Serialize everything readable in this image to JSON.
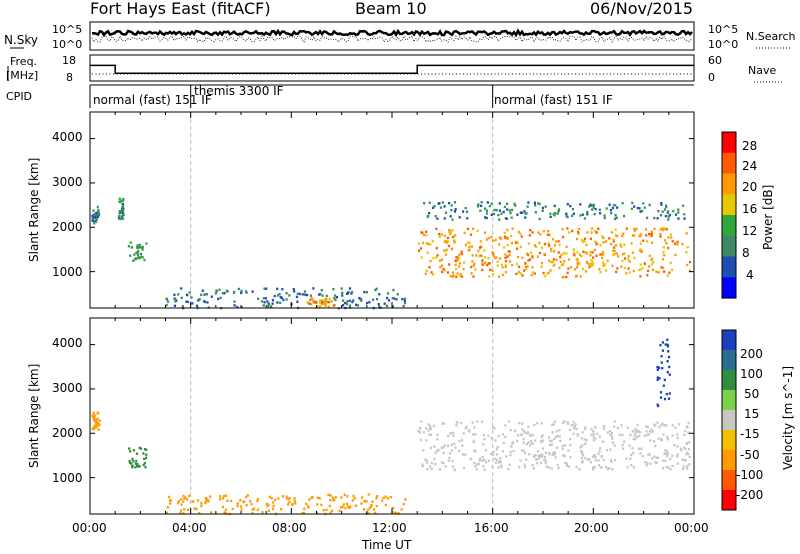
{
  "header": {
    "radar": "Fort Hays East (fitACF)",
    "beam": "Beam 10",
    "date": "06/Nov/2015"
  },
  "noise_panel": {
    "left_label": "N.Sky",
    "left_ticks": [
      "10^5",
      "10^0"
    ],
    "right_label": "N.Search",
    "right_ticks": [
      "10^5",
      "10^0"
    ]
  },
  "freq_panel": {
    "left_label_1": "Freq.",
    "left_label_2": "[MHz]",
    "left_ticks": [
      "18",
      "8"
    ],
    "right_label": "Nave",
    "right_ticks": [
      "60",
      "0"
    ]
  },
  "cpid_panel": {
    "label": "CPID",
    "segments": [
      {
        "label": "normal (fast) 151 IF",
        "start_h": 0,
        "end_h": 4
      },
      {
        "label": "themis 3300 IF",
        "start_h": 4,
        "end_h": 16
      },
      {
        "label": "normal (fast) 151 IF",
        "start_h": 16,
        "end_h": 24
      }
    ]
  },
  "power_panel": {
    "ylabel": "Slant Range [km]",
    "yticks": [
      "4000",
      "3000",
      "2000",
      "1000"
    ],
    "colorbar_label": "Power [dB]",
    "colorbar_ticks": [
      "28",
      "24",
      "20",
      "16",
      "12",
      "8",
      "4"
    ],
    "colorbar_colors": [
      "#ff0000",
      "#ff5a00",
      "#ff9a00",
      "#e6c800",
      "#2fa83a",
      "#3b8a64",
      "#1c4fb0",
      "#0000ff"
    ]
  },
  "velocity_panel": {
    "ylabel": "Slant Range [km]",
    "yticks": [
      "4000",
      "3000",
      "2000",
      "1000"
    ],
    "colorbar_label": "Velocity [m s^-1]",
    "colorbar_ticks": [
      "200",
      "100",
      "50",
      "15",
      "-15",
      "-50",
      "-100",
      "-200"
    ],
    "colorbar_colors": [
      "#1a3fbf",
      "#2a6e94",
      "#2e8f3e",
      "#7bd04c",
      "#c8c8c0",
      "#f0c000",
      "#ff9a00",
      "#ff5a00",
      "#ff0000"
    ]
  },
  "x_axis": {
    "label": "Time UT",
    "ticks": [
      "00:00",
      "04:00",
      "08:00",
      "12:00",
      "16:00",
      "20:00",
      "00:00"
    ]
  },
  "chart_data": [
    {
      "type": "line",
      "title": "Fort Hays East (fitACF)",
      "xlabel": "",
      "ylabel": "N.Sky",
      "y_scale": "log",
      "ylim": [
        1,
        100000
      ],
      "series": [],
      "x": [
        0,
        24
      ]
    },
    {
      "type": "line",
      "ylabel": "Freq. [MHz]",
      "ylim": [
        8,
        18
      ],
      "x": [
        0,
        1,
        1,
        13,
        13,
        24
      ],
      "series": [
        {
          "values": [
            14,
            14,
            11,
            11,
            14,
            14
          ]
        }
      ]
    },
    {
      "type": "heatmap",
      "ylabel": "Slant Range [km]",
      "xlabel": "Time UT",
      "xlim": [
        0,
        24
      ],
      "ylim": [
        180,
        4600
      ],
      "colorbar": "Power [dB]",
      "zlim": [
        0,
        30
      ],
      "regions": [
        {
          "t0": 0.05,
          "t1": 0.35,
          "r0": 2100,
          "r1": 2500,
          "z": 8
        },
        {
          "t0": 1.1,
          "t1": 1.3,
          "r0": 2200,
          "r1": 2700,
          "z": 8
        },
        {
          "t0": 1.5,
          "t1": 2.2,
          "r0": 1250,
          "r1": 1700,
          "z": 10
        },
        {
          "t0": 3.0,
          "t1": 12.5,
          "r0": 200,
          "r1": 650,
          "z": 6
        },
        {
          "t0": 8.5,
          "t1": 9.7,
          "r0": 230,
          "r1": 430,
          "z": 20
        },
        {
          "t0": 13.0,
          "t1": 23.8,
          "r0": 900,
          "r1": 2000,
          "z": 20
        },
        {
          "t0": 13.2,
          "t1": 23.6,
          "r0": 2200,
          "r1": 2600,
          "z": 7
        }
      ]
    },
    {
      "type": "heatmap",
      "ylabel": "Slant Range [km]",
      "xlabel": "Time UT",
      "xlim": [
        0,
        24
      ],
      "ylim": [
        180,
        4600
      ],
      "colorbar": "Velocity [m s^-1]",
      "zlim": [
        -200,
        200
      ],
      "regions": [
        {
          "t0": 0.05,
          "t1": 0.35,
          "r0": 2100,
          "r1": 2500,
          "z": -60
        },
        {
          "t0": 1.5,
          "t1": 2.2,
          "r0": 1250,
          "r1": 1700,
          "z": 60
        },
        {
          "t0": 3.0,
          "t1": 12.5,
          "r0": 200,
          "r1": 650,
          "z": -40
        },
        {
          "t0": 13.0,
          "t1": 23.8,
          "r0": 1200,
          "r1": 2300,
          "z": 0
        },
        {
          "t0": 22.5,
          "t1": 23.0,
          "r0": 2600,
          "r1": 4200,
          "z": 200
        }
      ]
    }
  ]
}
